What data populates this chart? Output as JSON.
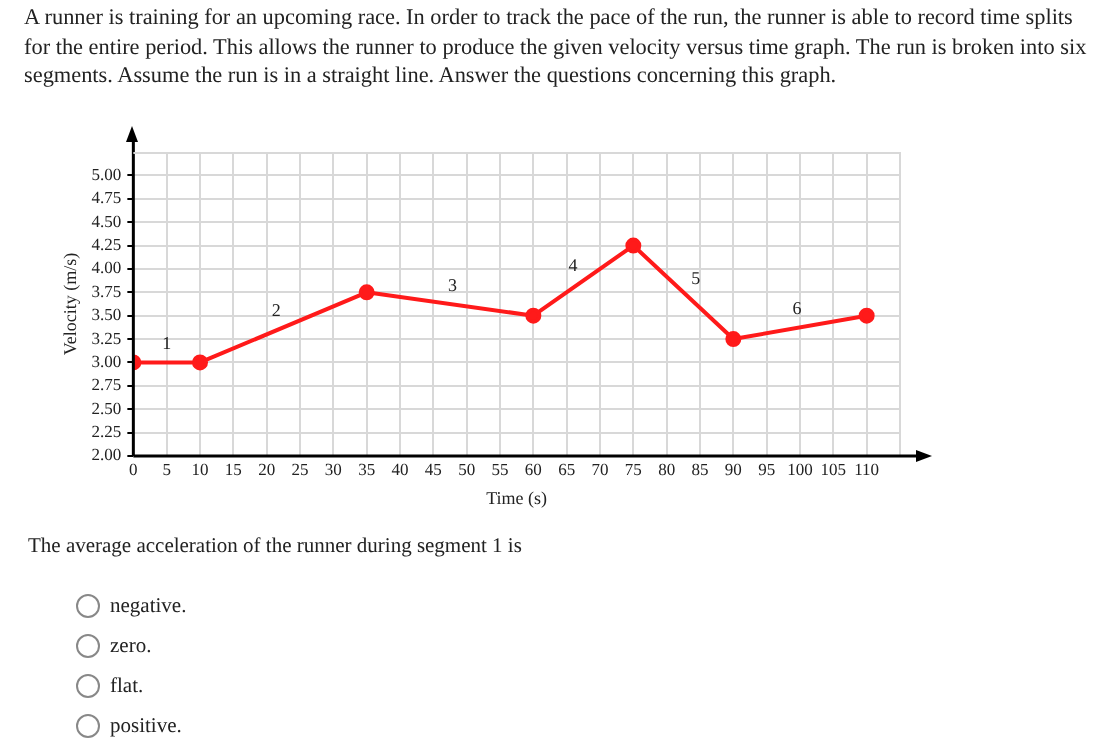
{
  "chart_data": {
    "type": "line",
    "title": "A runner is training for an upcoming race. In order to track the pace of the run, the runner is able to record time splits for the entire period. This allows the runner to produce the given velocity versus time graph. The run is broken into six segments. Assume the run is in a straight line. Answer the questions concerning this graph.",
    "xlabel": "Time (s)",
    "ylabel": "Velocity (m/s)",
    "x": [
      0,
      10,
      35,
      60,
      75,
      90,
      110
    ],
    "series": [
      {
        "color": "#ff1a1a",
        "values": [
          3.0,
          3.0,
          3.75,
          3.5,
          4.25,
          3.25,
          3.5
        ]
      }
    ],
    "xlim": [
      0,
      115
    ],
    "ylim": [
      2.0,
      5.25
    ],
    "xticks": [
      0,
      5,
      10,
      15,
      20,
      25,
      30,
      35,
      40,
      45,
      50,
      55,
      60,
      65,
      70,
      75,
      80,
      85,
      90,
      95,
      100,
      105,
      110,
      {
        "value": 115,
        "label": null
      }
    ],
    "yticks": [
      {
        "value": 2,
        "label": "2.00"
      },
      {
        "value": 2.25,
        "label": "2.25"
      },
      {
        "value": 2.5,
        "label": "2.50"
      },
      {
        "value": 2.75,
        "label": "2.75"
      },
      {
        "value": 3,
        "label": "3.00"
      },
      {
        "value": 3.25,
        "label": "3.25"
      },
      {
        "value": 3.5,
        "label": "3.50"
      },
      {
        "value": 3.75,
        "label": "3.75"
      },
      {
        "value": 4,
        "label": "4.00"
      },
      {
        "value": 4.25,
        "label": "4.25"
      },
      {
        "value": 4.5,
        "label": "4.50"
      },
      {
        "value": 4.75,
        "label": "4.75"
      },
      {
        "value": 5,
        "label": "5.00"
      }
    ],
    "grid": true,
    "marker": "circle",
    "line_style": "solid",
    "annotations": [
      "1",
      "2",
      "3",
      "4",
      "5",
      "6",
      "The average acceleration of the runner during segment 1 is",
      "negative.",
      "zero.",
      "flat.",
      "positive."
    ]
  }
}
